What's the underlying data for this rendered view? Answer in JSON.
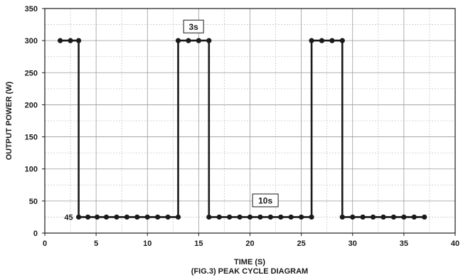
{
  "chart_data": {
    "type": "line",
    "xlabel": "TIME (S)",
    "ylabel": "OUTPUT POWER (W)",
    "caption": "(FIG.3) PEAK CYCLE DIAGRAM",
    "xlim": [
      0,
      40
    ],
    "ylim": [
      0,
      350
    ],
    "x_ticks": [
      0,
      5,
      10,
      15,
      20,
      25,
      30,
      35,
      40
    ],
    "y_ticks": [
      0,
      50,
      100,
      150,
      200,
      250,
      300,
      350
    ],
    "grid": true,
    "series": [
      {
        "x": [
          1.5,
          2.5,
          3.3,
          3.3,
          4.2,
          5.1,
          6,
          7,
          8,
          9,
          10,
          11,
          12,
          13,
          13,
          14,
          15,
          16,
          16,
          17,
          18,
          19,
          20,
          21,
          22,
          23,
          24,
          25,
          26,
          26,
          27,
          28,
          29,
          29,
          30,
          31,
          32,
          33,
          34,
          35,
          36,
          37
        ],
        "y": [
          300,
          300,
          300,
          25,
          25,
          25,
          25,
          25,
          25,
          25,
          25,
          25,
          25,
          25,
          300,
          300,
          300,
          300,
          25,
          25,
          25,
          25,
          25,
          25,
          25,
          25,
          25,
          25,
          25,
          300,
          300,
          300,
          300,
          25,
          25,
          25,
          25,
          25,
          25,
          25,
          25,
          25
        ],
        "color": "#1a1a1a"
      }
    ],
    "annotations": [
      {
        "text": "3s",
        "x": 14.5,
        "y": 322
      },
      {
        "text": "10s",
        "x": 21.5,
        "y": 51
      }
    ],
    "point_labels": [
      {
        "text": "45",
        "x": 3.3,
        "y": 25
      }
    ]
  }
}
